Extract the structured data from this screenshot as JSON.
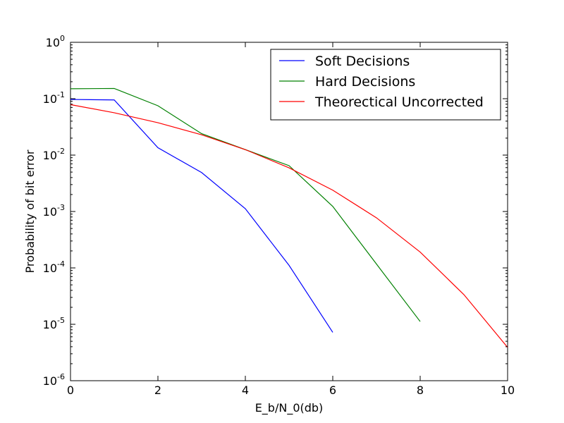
{
  "chart_data": {
    "type": "line",
    "title": "",
    "xlabel": "E_b/N_0(db)",
    "ylabel": "Probability of bit error",
    "xscale": "linear",
    "yscale": "log",
    "xlim": [
      0,
      10
    ],
    "ylim": [
      1e-06,
      1
    ],
    "x_ticks": [
      0,
      2,
      4,
      6,
      8,
      10
    ],
    "x_tick_labels": [
      "0",
      "2",
      "4",
      "6",
      "8",
      "10"
    ],
    "y_ticks": [
      1e-06,
      1e-05,
      0.0001,
      0.001,
      0.01,
      0.1,
      1
    ],
    "y_tick_base": "10",
    "y_tick_exponents": [
      "-6",
      "-5",
      "-4",
      "-3",
      "-2",
      "-1",
      "0"
    ],
    "grid": false,
    "legend_position": "top-right",
    "series": [
      {
        "name": "Soft Decisions",
        "color": "#0000ff",
        "x": [
          0,
          1,
          2,
          3,
          4,
          5,
          6
        ],
        "y": [
          0.097,
          0.095,
          0.0135,
          0.0049,
          0.00112,
          0.000111,
          7.2e-06
        ]
      },
      {
        "name": "Hard Decisions",
        "color": "#008000",
        "x": [
          0,
          1,
          2,
          3,
          4,
          5,
          6,
          7,
          8
        ],
        "y": [
          0.15,
          0.152,
          0.075,
          0.024,
          0.0125,
          0.0065,
          0.00123,
          0.000117,
          1.12e-05
        ]
      },
      {
        "name": "Theorectical Uncorrected",
        "color": "#ff0000",
        "x": [
          0,
          1,
          2,
          3,
          4,
          5,
          6,
          7,
          8,
          9,
          10
        ],
        "y": [
          0.0786,
          0.0563,
          0.0375,
          0.0229,
          0.0125,
          0.00595,
          0.00239,
          0.000773,
          0.000191,
          3.36e-05,
          3.9e-06
        ]
      }
    ]
  }
}
